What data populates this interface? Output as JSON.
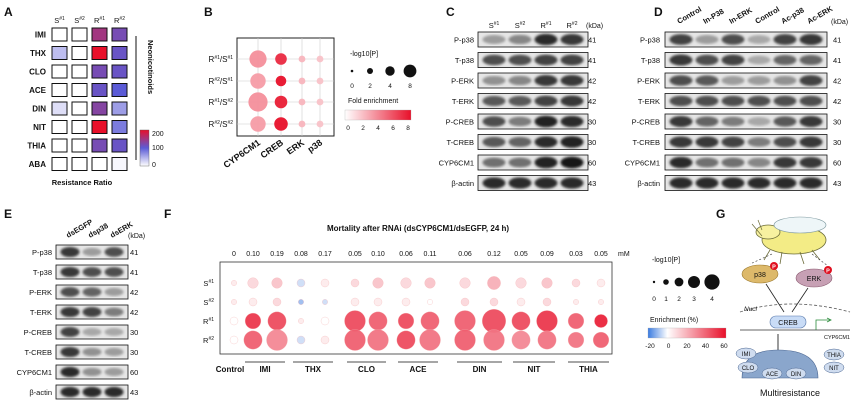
{
  "panel_labels": [
    "A",
    "B",
    "C",
    "D",
    "E",
    "F",
    "G"
  ],
  "panelA": {
    "columns": [
      "S#1",
      "S#2",
      "R#1",
      "R#2"
    ],
    "rows": [
      "IMI",
      "THX",
      "CLO",
      "ACE",
      "DIN",
      "NIT",
      "THIA",
      "ABA"
    ],
    "side_label": "Neonicotinoids",
    "xlabel": "Resistance Ratio",
    "legend_ticks": [
      "200",
      "100",
      "0"
    ],
    "colors": {
      "low": "#ffffff",
      "mid": "#5b5bd6",
      "high": "#e8102a"
    }
  },
  "panelB": {
    "rows": [
      "R#1/S#1",
      "R#2/S#1",
      "R#1/S#2",
      "R#2/S#2"
    ],
    "columns": [
      "CYP6CM1",
      "CREB",
      "ERK",
      "p38"
    ],
    "size_title": "-log10[P]",
    "size_ticks": [
      "0",
      "2",
      "4",
      "8"
    ],
    "color_title": "Fold enrichment",
    "color_ticks": [
      "0",
      "2",
      "4",
      "6",
      "8"
    ],
    "accent": "#e8102a"
  },
  "panelC": {
    "lanes": [
      "S#1",
      "S#2",
      "R#1",
      "R#2"
    ],
    "unit": "(kDa)",
    "bands": [
      {
        "name": "P-p38",
        "kda": "41"
      },
      {
        "name": "T-p38",
        "kda": "41"
      },
      {
        "name": "P-ERK",
        "kda": "42"
      },
      {
        "name": "T-ERK",
        "kda": "42"
      },
      {
        "name": "P-CREB",
        "kda": "30"
      },
      {
        "name": "T-CREB",
        "kda": "30"
      },
      {
        "name": "CYP6CM1",
        "kda": "60"
      },
      {
        "name": "β-actin",
        "kda": "43"
      }
    ]
  },
  "panelD": {
    "lanes": [
      "Control",
      "In-P38",
      "In-ERK",
      "Control",
      "Ac-p38",
      "Ac-ERK"
    ],
    "unit": "(kDa)",
    "bands": [
      {
        "name": "P-p38",
        "kda": "41"
      },
      {
        "name": "T-p38",
        "kda": "41"
      },
      {
        "name": "P-ERK",
        "kda": "42"
      },
      {
        "name": "T-ERK",
        "kda": "42"
      },
      {
        "name": "P-CREB",
        "kda": "30"
      },
      {
        "name": "T-CREB",
        "kda": "30"
      },
      {
        "name": "CYP6CM1",
        "kda": "60"
      },
      {
        "name": "β-actin",
        "kda": "43"
      }
    ]
  },
  "panelE": {
    "lanes": [
      "dsEGFP",
      "dsp38",
      "dsERK"
    ],
    "unit": "(kDa)",
    "bands": [
      {
        "name": "P-p38",
        "kda": "41"
      },
      {
        "name": "T-p38",
        "kda": "41"
      },
      {
        "name": "P-ERK",
        "kda": "42"
      },
      {
        "name": "T-ERK",
        "kda": "42"
      },
      {
        "name": "P-CREB",
        "kda": "30"
      },
      {
        "name": "T-CREB",
        "kda": "30"
      },
      {
        "name": "CYP6CM1",
        "kda": "60"
      },
      {
        "name": "β-actin",
        "kda": "43"
      }
    ]
  },
  "panelF": {
    "title": "Mortality after RNAi (dsCYP6CM1/dsEGFP, 24 h)",
    "unit": "mM",
    "concentrations": [
      "0",
      "0.10",
      "0.19",
      "0.08",
      "0.17",
      "0.05",
      "0.10",
      "0.06",
      "0.11",
      "0.06",
      "0.12",
      "0.05",
      "0.09",
      "0.03",
      "0.05"
    ],
    "rows": [
      "S#1",
      "S#2",
      "R#1",
      "R#2"
    ],
    "groups": [
      "Control",
      "IMI",
      "THX",
      "CLO",
      "ACE",
      "DIN",
      "NIT",
      "THIA"
    ],
    "size_title": "-log10[P]",
    "size_ticks": [
      "0",
      "1",
      "2",
      "3",
      "4"
    ],
    "color_title": "Enrichment (%)",
    "color_ticks": [
      "-20",
      "0",
      "20",
      "40",
      "60"
    ]
  },
  "panelG": {
    "nodes": [
      "p38",
      "ERK",
      "CREB",
      "CYP6CM1",
      "Nucl"
    ],
    "insecticides": [
      "IMI",
      "CLO",
      "ACE",
      "DIN",
      "NIT",
      "THIA"
    ],
    "phospho": "P",
    "caption": "Multiresistance"
  },
  "chart_data": [
    {
      "type": "heatmap",
      "name": "A",
      "rows": [
        "IMI",
        "THX",
        "CLO",
        "ACE",
        "DIN",
        "NIT",
        "THIA",
        "ABA"
      ],
      "columns": [
        "S#1",
        "S#2",
        "R#1",
        "R#2"
      ],
      "values": [
        [
          1,
          1,
          150,
          120
        ],
        [
          40,
          1,
          200,
          110
        ],
        [
          1,
          1,
          120,
          110
        ],
        [
          1,
          1,
          110,
          100
        ],
        [
          20,
          1,
          130,
          60
        ],
        [
          1,
          1,
          240,
          80
        ],
        [
          1,
          1,
          120,
          110
        ],
        [
          1,
          1,
          1,
          5
        ]
      ],
      "scale": [
        0,
        200
      ],
      "xlabel": "Resistance Ratio",
      "ylabel": "Neonicotinoids"
    },
    {
      "type": "scatter",
      "name": "B",
      "rows": [
        "R#1/S#1",
        "R#2/S#1",
        "R#1/S#2",
        "R#2/S#2"
      ],
      "columns": [
        "CYP6CM1",
        "CREB",
        "ERK",
        "p38"
      ],
      "size_log10p": [
        [
          7,
          4,
          1.5,
          1.5
        ],
        [
          6,
          3.5,
          1.5,
          1.5
        ],
        [
          8,
          4.5,
          1.5,
          1.5
        ],
        [
          6,
          5,
          1.5,
          1.5
        ]
      ],
      "fold": [
        [
          3,
          7,
          1.5,
          1
        ],
        [
          2.5,
          8,
          1.5,
          1
        ],
        [
          3,
          7.5,
          1.5,
          1
        ],
        [
          2.5,
          8,
          1.5,
          1
        ]
      ],
      "color_range": [
        0,
        8
      ]
    },
    {
      "type": "scatter",
      "name": "F",
      "rows": [
        "S#1",
        "S#2",
        "R#1",
        "R#2"
      ],
      "columns": [
        "0",
        "0.10",
        "0.19",
        "0.08",
        "0.17",
        "0.05",
        "0.10",
        "0.06",
        "0.11",
        "0.06",
        "0.12",
        "0.05",
        "0.09",
        "0.03",
        "0.05"
      ],
      "size_log10p": [
        [
          0.5,
          1.5,
          1.5,
          1,
          1,
          1,
          1.5,
          1.5,
          1.5,
          1.5,
          2,
          1.5,
          1.5,
          1,
          1
        ],
        [
          0.5,
          1,
          1,
          0.5,
          0.5,
          1,
          1,
          1,
          0.5,
          1,
          1,
          1,
          1,
          0.5,
          0.5
        ],
        [
          1,
          2.5,
          3,
          0.5,
          1,
          3.5,
          3,
          2.5,
          3,
          3.5,
          4,
          3,
          3.5,
          2.5,
          2
        ],
        [
          1,
          3,
          3.5,
          1,
          1,
          3.5,
          3.5,
          3,
          3.5,
          3.5,
          3.5,
          3,
          3,
          2.5,
          2.5
        ]
      ],
      "enrichment_pct": [
        [
          5,
          10,
          15,
          -5,
          5,
          10,
          15,
          10,
          15,
          10,
          20,
          10,
          15,
          10,
          5
        ],
        [
          5,
          5,
          10,
          -10,
          -5,
          5,
          5,
          5,
          0,
          10,
          10,
          5,
          10,
          5,
          5
        ],
        [
          0,
          50,
          45,
          5,
          0,
          45,
          40,
          45,
          40,
          40,
          45,
          45,
          50,
          40,
          55
        ],
        [
          0,
          40,
          30,
          -5,
          5,
          40,
          35,
          45,
          35,
          40,
          35,
          30,
          35,
          35,
          40
        ]
      ],
      "color_range": [
        -20,
        60
      ]
    }
  ]
}
